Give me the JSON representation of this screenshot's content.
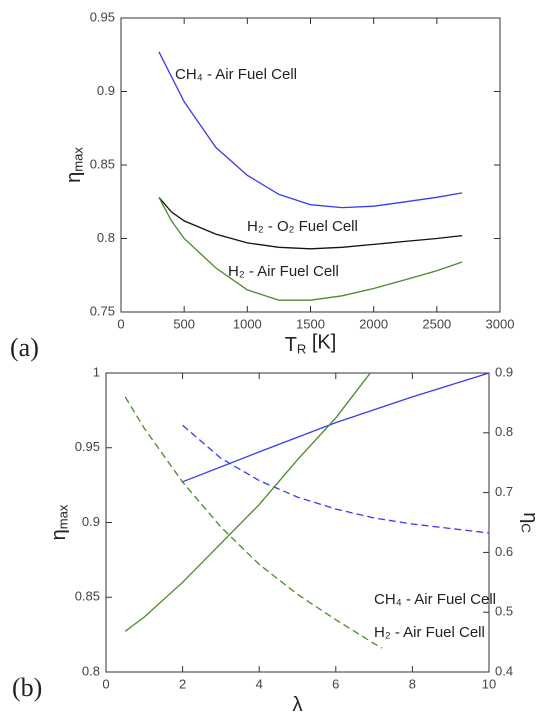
{
  "chart_data": [
    {
      "type": "line",
      "panel": "(a)",
      "xlabel": {
        "main": "T",
        "sub": "R",
        "unit": " [K]"
      },
      "ylabel": {
        "main": "η",
        "sub": "max"
      },
      "xlim": [
        0,
        3000
      ],
      "xticks": [
        0,
        500,
        1000,
        1500,
        2000,
        2500,
        3000
      ],
      "ylim": [
        0.75,
        0.95
      ],
      "yticks": [
        0.75,
        0.8,
        0.85,
        0.9,
        0.95
      ],
      "series": [
        {
          "name": "CH₄ - Air Fuel Cell",
          "color": "#3a3af0",
          "x": [
            300,
            500,
            750,
            1000,
            1250,
            1500,
            1750,
            2000,
            2250,
            2500,
            2700
          ],
          "values": [
            0.927,
            0.893,
            0.862,
            0.843,
            0.83,
            0.823,
            0.821,
            0.822,
            0.825,
            0.828,
            0.831
          ]
        },
        {
          "name": "H₂ - O₂ Fuel Cell",
          "color": "#111111",
          "x": [
            300,
            400,
            500,
            750,
            1000,
            1250,
            1500,
            1750,
            2000,
            2250,
            2500,
            2700
          ],
          "values": [
            0.828,
            0.818,
            0.812,
            0.803,
            0.797,
            0.794,
            0.793,
            0.794,
            0.796,
            0.798,
            0.8,
            0.802
          ]
        },
        {
          "name": "H₂ - Air Fuel Cell",
          "color": "#4a8a2a",
          "x": [
            300,
            400,
            500,
            750,
            1000,
            1250,
            1500,
            1750,
            2000,
            2250,
            2500,
            2700
          ],
          "values": [
            0.828,
            0.812,
            0.8,
            0.78,
            0.765,
            0.758,
            0.758,
            0.761,
            0.766,
            0.772,
            0.778,
            0.784
          ]
        }
      ]
    },
    {
      "type": "line",
      "panel": "(b)",
      "xlabel": {
        "main": "λ"
      },
      "ylabel": {
        "main": "η",
        "sub": "max"
      },
      "y2label": {
        "main": "η",
        "sub": "C"
      },
      "xlim": [
        0,
        10
      ],
      "xticks": [
        0,
        2,
        4,
        6,
        8,
        10
      ],
      "ylim": [
        0.8,
        1
      ],
      "yticks": [
        0.8,
        0.85,
        0.9,
        0.95,
        1
      ],
      "y2lim": [
        0.4,
        0.9
      ],
      "y2ticks": [
        0.4,
        0.5,
        0.6,
        0.7,
        0.8,
        0.9
      ],
      "series": [
        {
          "name": "CH₄ - Air Fuel Cell",
          "color": "#3a3af0",
          "dash": true,
          "x": [
            2,
            3,
            4,
            5,
            6,
            7,
            8,
            9,
            10
          ],
          "values": [
            0.965,
            0.943,
            0.928,
            0.917,
            0.909,
            0.903,
            0.899,
            0.896,
            0.893
          ]
        },
        {
          "name": "H₂ - Air Fuel Cell",
          "color": "#4a8a2a",
          "dash": true,
          "x": [
            0.5,
            1,
            2,
            3,
            4,
            5,
            6,
            7,
            7.2
          ],
          "values": [
            0.984,
            0.963,
            0.927,
            0.897,
            0.872,
            0.852,
            0.835,
            0.819,
            0.816
          ]
        },
        {
          "color": "#3a3af0",
          "axis": "y2",
          "x": [
            2,
            4,
            6,
            8,
            10
          ],
          "values": [
            0.718,
            0.768,
            0.817,
            0.86,
            0.9
          ]
        },
        {
          "color": "#4a8a2a",
          "axis": "y2",
          "x": [
            0.5,
            1,
            2,
            3,
            4,
            5,
            6,
            6.9
          ],
          "values": [
            0.468,
            0.492,
            0.55,
            0.615,
            0.68,
            0.755,
            0.825,
            0.9
          ]
        }
      ]
    }
  ]
}
